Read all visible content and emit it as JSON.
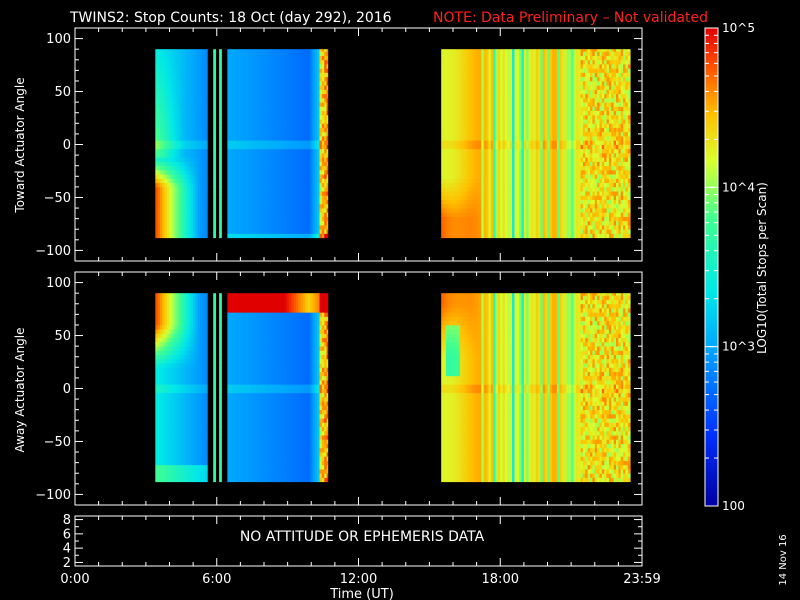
{
  "title": {
    "main": "TWINS2: Stop Counts: 18 Oct (day 292), 2016",
    "note": "NOTE: Data Preliminary – Not validated",
    "note_color": "#ff2020"
  },
  "footer": {
    "date_stamp": "14 Nov 16",
    "no_data_message": "NO ATTITUDE OR EPHEMERIS DATA"
  },
  "chart_data": {
    "type": "heatmap",
    "xlabel": "Time (UT)",
    "xlim_hours": [
      0,
      24
    ],
    "x_ticks": [
      "0:00",
      "6:00",
      "12:00",
      "18:00",
      "23:59"
    ],
    "data_intervals_hours": [
      [
        3.4,
        5.6
      ],
      [
        5.85,
        5.95
      ],
      [
        6.1,
        6.2
      ],
      [
        6.45,
        10.7
      ],
      [
        15.5,
        23.5
      ]
    ],
    "colorbar": {
      "label": "LOG10(Total Stops per Scan)",
      "tick_labels": [
        "100",
        "10^3",
        "10^4",
        "10^5"
      ],
      "log_range": [
        2,
        5
      ]
    },
    "panels": [
      {
        "name": "toward",
        "ylabel": "Toward Actuator Angle",
        "ylim": [
          -110,
          110
        ],
        "data_ylim": [
          -88,
          90
        ],
        "y_ticks": [
          "100",
          "50",
          "0",
          "−50",
          "−100"
        ]
      },
      {
        "name": "away",
        "ylabel": "Away Actuator Angle",
        "ylim": [
          -110,
          110
        ],
        "data_ylim": [
          -88,
          90
        ],
        "y_ticks": [
          "100",
          "50",
          "0",
          "−50",
          "−100"
        ]
      },
      {
        "name": "ephemeris",
        "ylabel": "",
        "ylim": [
          1.5,
          8.5
        ],
        "y_ticks": [
          "8",
          "6",
          "4",
          "2"
        ]
      }
    ]
  }
}
